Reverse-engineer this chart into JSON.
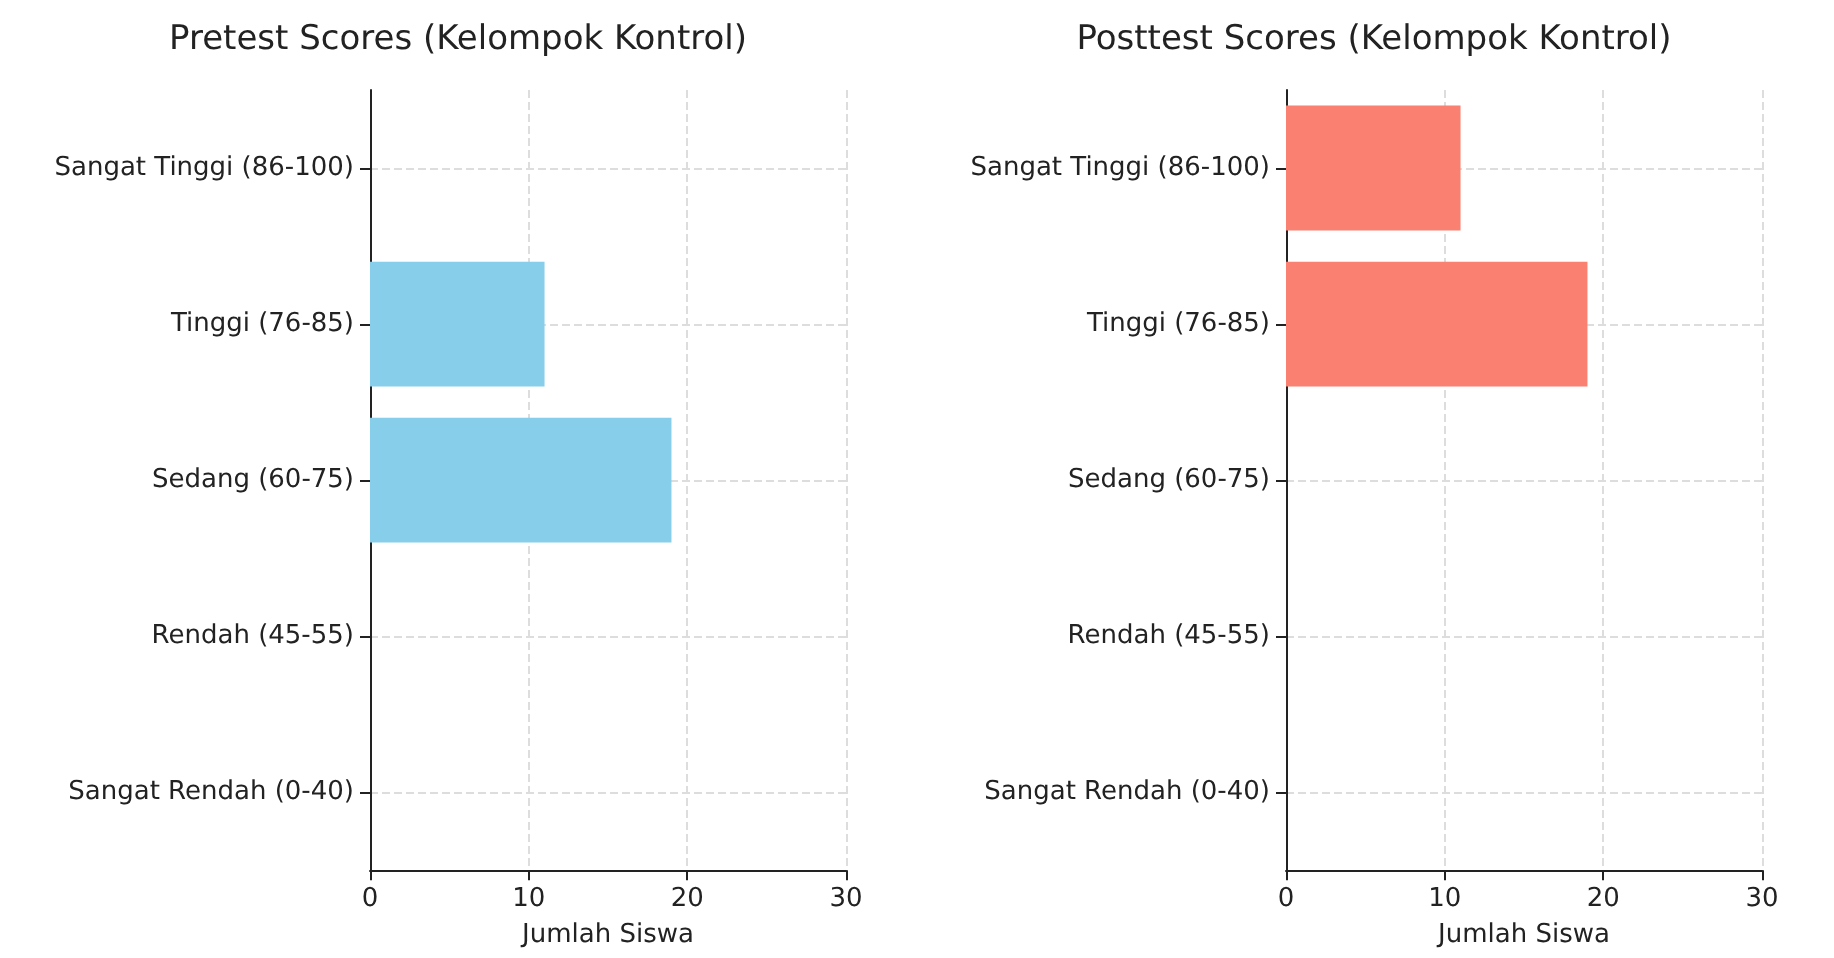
{
  "chart_data": [
    {
      "type": "bar",
      "orientation": "horizontal",
      "title": "Pretest Scores (Kelompok Kontrol)",
      "xlabel": "Jumlah Siswa",
      "categories": [
        "Sangat Tinggi (86-100)",
        "Tinggi (76-85)",
        "Sedang (60-75)",
        "Rendah (45-55)",
        "Sangat Rendah (0-40)"
      ],
      "series": [
        {
          "color": "#87ceeb",
          "values": [
            0,
            11,
            19,
            0,
            0
          ]
        }
      ],
      "xlim": [
        0,
        30
      ],
      "xticks": [
        0,
        10,
        20,
        30
      ],
      "grid": true
    },
    {
      "type": "bar",
      "orientation": "horizontal",
      "title": "Posttest Scores (Kelompok Kontrol)",
      "xlabel": "Jumlah Siswa",
      "categories": [
        "Sangat Tinggi (86-100)",
        "Tinggi (76-85)",
        "Sedang (60-75)",
        "Rendah (45-55)",
        "Sangat Rendah (0-40)"
      ],
      "series": [
        {
          "color": "#fa8072",
          "values": [
            11,
            19,
            0,
            0,
            0
          ]
        }
      ],
      "xlim": [
        0,
        30
      ],
      "xticks": [
        0,
        10,
        20,
        30
      ],
      "grid": true
    }
  ]
}
